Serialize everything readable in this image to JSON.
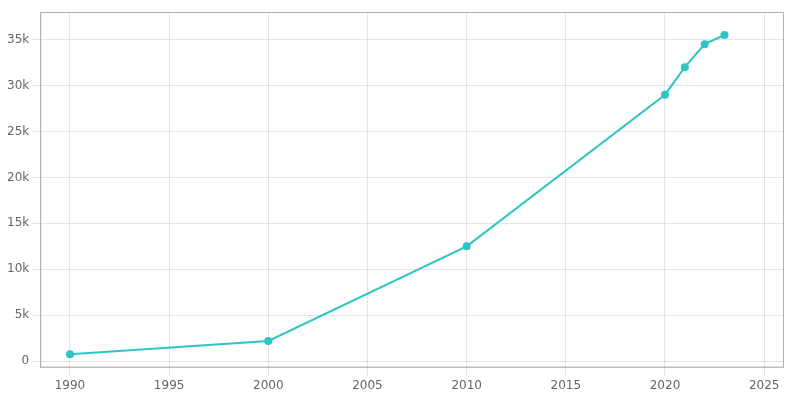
{
  "chart_data": {
    "type": "line",
    "x": [
      1990,
      2000,
      2010,
      2020,
      2021,
      2022,
      2023
    ],
    "values": [
      750,
      2200,
      12500,
      29000,
      32000,
      34500,
      35500
    ],
    "color": "#2dc5c5",
    "marker": "circle",
    "xlim": [
      1988.5,
      2026
    ],
    "ylim": [
      -700,
      38000
    ],
    "xticks": [
      1990,
      1995,
      2000,
      2005,
      2010,
      2015,
      2020,
      2025
    ],
    "yticks": [
      0,
      {
        "value": 5000,
        "label": "5k"
      },
      {
        "value": 10000,
        "label": "10k"
      },
      {
        "value": 15000,
        "label": "15k"
      },
      {
        "value": 20000,
        "label": "20k"
      },
      {
        "value": 25000,
        "label": "25k"
      },
      {
        "value": 30000,
        "label": "30k"
      },
      {
        "value": 35000,
        "label": "35k"
      }
    ],
    "grid": true
  }
}
